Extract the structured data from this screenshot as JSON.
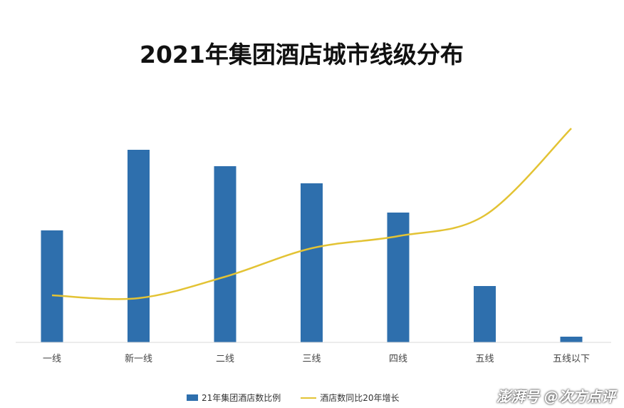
{
  "chart_data": {
    "type": "bar",
    "title": "2021年集团酒店城市线级分布",
    "categories": [
      "一线",
      "新一线",
      "二线",
      "三线",
      "四线",
      "五线",
      "五线以下"
    ],
    "series": [
      {
        "name": "21年集团酒店数比例",
        "type": "bar",
        "color": "#2e6fad",
        "values": [
          157,
          270,
          247,
          223,
          182,
          79,
          8
        ]
      },
      {
        "name": "酒店数同比20年增长",
        "type": "line",
        "color": "#e3c334",
        "values": [
          66,
          62,
          92,
          132,
          149,
          178,
          300
        ]
      }
    ],
    "axes_visible": false,
    "grid": false,
    "legend_position": "bottom"
  },
  "watermark": "澎湃号 @次方点评"
}
